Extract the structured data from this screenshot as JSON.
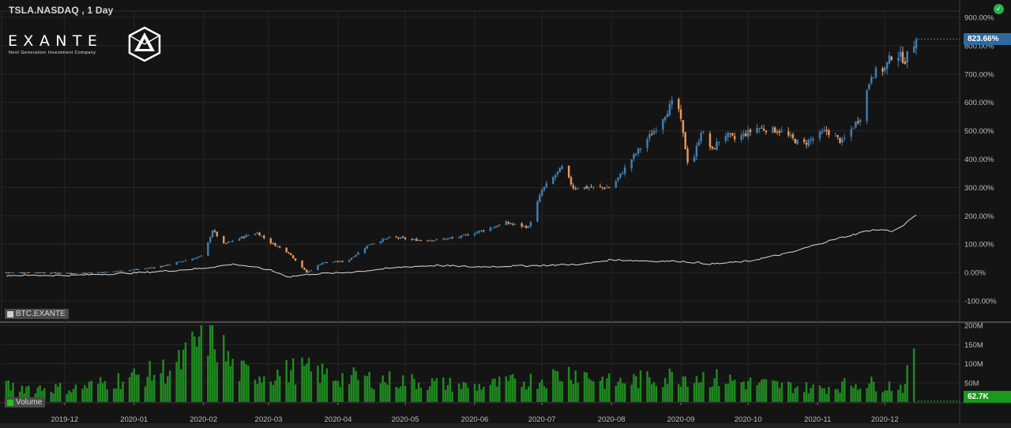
{
  "header": {
    "title": "TSLA.NASDAQ , 1 Day"
  },
  "logo": {
    "wordmark": "EXANTE",
    "tagline": "Next Generation Investment Company"
  },
  "status": {
    "icon": "check-circle-icon",
    "color": "#27b04a"
  },
  "legend": {
    "compare_label": "BTC.EXANTE",
    "volume_label": "Volume"
  },
  "badges": {
    "price": "823.66%",
    "volume": "62.7K"
  },
  "colors": {
    "up": "#3f7fb5",
    "down": "#e8955a",
    "compare": "#d9d9d9",
    "volume": "#1f8a1f",
    "background": "#141414",
    "grid": "#262626"
  },
  "chart_data": [
    {
      "type": "candlestick",
      "title": "TSLA.NASDAQ , 1 Day",
      "yunit": "%",
      "ylim": [
        -110,
        910
      ],
      "yticks": [
        900,
        800,
        700,
        600,
        500,
        400,
        300,
        200,
        100,
        0,
        -100
      ],
      "ytick_labels": [
        "900.00%",
        "800.00%",
        "700.00%",
        "600.00%",
        "500.00%",
        "400.00%",
        "300.00%",
        "200.00%",
        "100.00%",
        "0.00%",
        "-100.00%"
      ],
      "x_labels": [
        "2019-12",
        "2020-01",
        "2020-02",
        "2020-03",
        "2020-04",
        "2020-05",
        "2020-06",
        "2020-07",
        "2020-08",
        "2020-09",
        "2020-10",
        "2020-11",
        "2020-12"
      ],
      "x_label_dates": [
        "2019-12-01",
        "2020-01-01",
        "2020-02-01",
        "2020-03-01",
        "2020-04-01",
        "2020-05-01",
        "2020-06-01",
        "2020-07-01",
        "2020-08-01",
        "2020-09-01",
        "2020-10-01",
        "2020-11-01",
        "2020-12-01"
      ],
      "date_range": [
        "2019-11-05",
        "2020-12-15"
      ],
      "last_value": 823.66,
      "series": [
        {
          "name": "TSLA.NASDAQ",
          "points": [
            [
              "2019-11-05",
              0
            ],
            [
              "2019-11-20",
              0
            ],
            [
              "2019-12-05",
              -3
            ],
            [
              "2019-12-20",
              2
            ],
            [
              "2020-01-05",
              13
            ],
            [
              "2020-01-15",
              25
            ],
            [
              "2020-01-25",
              45
            ],
            [
              "2020-02-01",
              60
            ],
            [
              "2020-02-05",
              150
            ],
            [
              "2020-02-10",
              100
            ],
            [
              "2020-02-20",
              130
            ],
            [
              "2020-02-25",
              140
            ],
            [
              "2020-03-01",
              110
            ],
            [
              "2020-03-10",
              70
            ],
            [
              "2020-03-18",
              0
            ],
            [
              "2020-03-25",
              35
            ],
            [
              "2020-04-05",
              40
            ],
            [
              "2020-04-15",
              100
            ],
            [
              "2020-04-25",
              125
            ],
            [
              "2020-05-05",
              115
            ],
            [
              "2020-05-15",
              115
            ],
            [
              "2020-05-25",
              125
            ],
            [
              "2020-06-05",
              150
            ],
            [
              "2020-06-15",
              175
            ],
            [
              "2020-06-25",
              160
            ],
            [
              "2020-07-01",
              290
            ],
            [
              "2020-07-10",
              370
            ],
            [
              "2020-07-15",
              300
            ],
            [
              "2020-07-25",
              300
            ],
            [
              "2020-08-01",
              300
            ],
            [
              "2020-08-10",
              400
            ],
            [
              "2020-08-20",
              500
            ],
            [
              "2020-08-25",
              560
            ],
            [
              "2020-08-30",
              620
            ],
            [
              "2020-09-05",
              350
            ],
            [
              "2020-09-10",
              500
            ],
            [
              "2020-09-15",
              430
            ],
            [
              "2020-09-20",
              490
            ],
            [
              "2020-09-25",
              470
            ],
            [
              "2020-10-05",
              510
            ],
            [
              "2020-10-15",
              500
            ],
            [
              "2020-10-25",
              450
            ],
            [
              "2020-11-05",
              500
            ],
            [
              "2020-11-12",
              460
            ],
            [
              "2020-11-20",
              550
            ],
            [
              "2020-11-25",
              700
            ],
            [
              "2020-12-01",
              720
            ],
            [
              "2020-12-05",
              780
            ],
            [
              "2020-12-10",
              750
            ],
            [
              "2020-12-15",
              823.66
            ]
          ]
        },
        {
          "name": "BTC.EXANTE",
          "points": [
            [
              "2019-11-05",
              -10
            ],
            [
              "2019-12-05",
              -10
            ],
            [
              "2020-01-05",
              0
            ],
            [
              "2020-02-01",
              15
            ],
            [
              "2020-02-15",
              30
            ],
            [
              "2020-03-01",
              10
            ],
            [
              "2020-03-10",
              -15
            ],
            [
              "2020-03-20",
              -5
            ],
            [
              "2020-04-05",
              0
            ],
            [
              "2020-05-01",
              20
            ],
            [
              "2020-05-15",
              25
            ],
            [
              "2020-06-01",
              20
            ],
            [
              "2020-07-01",
              25
            ],
            [
              "2020-07-20",
              30
            ],
            [
              "2020-08-01",
              45
            ],
            [
              "2020-08-20",
              40
            ],
            [
              "2020-09-01",
              40
            ],
            [
              "2020-09-15",
              30
            ],
            [
              "2020-10-01",
              40
            ],
            [
              "2020-10-20",
              70
            ],
            [
              "2020-11-01",
              100
            ],
            [
              "2020-11-10",
              120
            ],
            [
              "2020-11-20",
              140
            ],
            [
              "2020-11-25",
              150
            ],
            [
              "2020-12-01",
              150
            ],
            [
              "2020-12-05",
              145
            ],
            [
              "2020-12-10",
              170
            ],
            [
              "2020-12-15",
              205
            ]
          ]
        }
      ]
    },
    {
      "type": "bar",
      "name": "Volume",
      "yunit": "shares",
      "ylim": [
        0,
        200000000
      ],
      "yticks": [
        200000000,
        150000000,
        100000000,
        50000000
      ],
      "ytick_labels": [
        "200M",
        "150M",
        "100M",
        "50M"
      ],
      "date_range": [
        "2019-11-05",
        "2020-12-15"
      ],
      "last_value_label": "62.7K",
      "volume_profile": [
        [
          "2019-11-05",
          40000000
        ],
        [
          "2019-12-05",
          35000000
        ],
        [
          "2020-01-05",
          70000000
        ],
        [
          "2020-01-20",
          90000000
        ],
        [
          "2020-02-04",
          190000000
        ],
        [
          "2020-02-15",
          80000000
        ],
        [
          "2020-03-01",
          70000000
        ],
        [
          "2020-03-15",
          85000000
        ],
        [
          "2020-04-01",
          65000000
        ],
        [
          "2020-05-01",
          55000000
        ],
        [
          "2020-06-01",
          40000000
        ],
        [
          "2020-07-01",
          60000000
        ],
        [
          "2020-07-15",
          80000000
        ],
        [
          "2020-08-01",
          50000000
        ],
        [
          "2020-08-25",
          65000000
        ],
        [
          "2020-09-05",
          70000000
        ],
        [
          "2020-10-01",
          50000000
        ],
        [
          "2020-11-01",
          35000000
        ],
        [
          "2020-11-20",
          50000000
        ],
        [
          "2020-12-10",
          40000000
        ],
        [
          "2020-12-14",
          145000000
        ],
        [
          "2020-12-15",
          62700
        ]
      ]
    }
  ]
}
